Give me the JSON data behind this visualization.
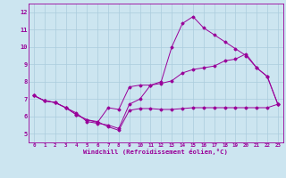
{
  "xlabel": "Windchill (Refroidissement éolien,°C)",
  "background_color": "#cce5f0",
  "line_color": "#990099",
  "grid_color": "#aaccdd",
  "xlim": [
    -0.5,
    23.5
  ],
  "ylim": [
    4.5,
    12.5
  ],
  "yticks": [
    5,
    6,
    7,
    8,
    9,
    10,
    11,
    12
  ],
  "xticks": [
    0,
    1,
    2,
    3,
    4,
    5,
    6,
    7,
    8,
    9,
    10,
    11,
    12,
    13,
    14,
    15,
    16,
    17,
    18,
    19,
    20,
    21,
    22,
    23
  ],
  "line1": [
    7.2,
    6.9,
    6.8,
    6.5,
    6.1,
    5.8,
    5.7,
    5.4,
    5.2,
    6.35,
    6.45,
    6.45,
    6.4,
    6.4,
    6.45,
    6.5,
    6.5,
    6.5,
    6.5,
    6.5,
    6.5,
    6.5,
    6.5,
    6.7
  ],
  "line2": [
    7.2,
    6.9,
    6.8,
    6.5,
    6.1,
    5.8,
    5.65,
    6.5,
    6.4,
    7.7,
    7.8,
    7.8,
    7.9,
    8.05,
    8.5,
    8.7,
    8.8,
    8.9,
    9.2,
    9.3,
    9.6,
    8.8,
    8.3,
    6.7
  ],
  "line3": [
    7.2,
    6.9,
    6.8,
    6.5,
    6.2,
    5.7,
    5.6,
    5.5,
    5.3,
    6.7,
    7.0,
    7.8,
    8.0,
    10.0,
    11.35,
    11.75,
    11.1,
    10.7,
    10.3,
    9.9,
    9.5,
    8.8,
    8.3,
    6.7
  ]
}
